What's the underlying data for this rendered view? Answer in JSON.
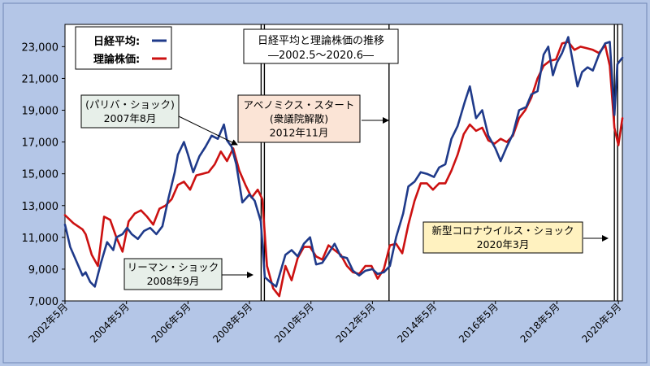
{
  "chart_data": {
    "type": "line",
    "title": "日経平均と理論株価の推移",
    "subtitle": "―2002.5～2020.6―",
    "xlabel": "",
    "ylabel": "",
    "ylim": [
      7000,
      24400
    ],
    "xlim": [
      2002.33,
      2020.46
    ],
    "y_ticks": [
      "7,000",
      "9,000",
      "11,000",
      "13,000",
      "15,000",
      "17,000",
      "19,000",
      "21,000",
      "23,000"
    ],
    "y_tick_values": [
      7000,
      9000,
      11000,
      13000,
      15000,
      17000,
      19000,
      21000,
      23000
    ],
    "x_ticks": [
      "2002年5月",
      "2004年5月",
      "2006年5月",
      "2008年5月",
      "2010年5月",
      "2012年5月",
      "2014年5月",
      "2016年5月",
      "2018年5月",
      "2020年5月"
    ],
    "x_tick_values": [
      2002.33,
      2004.33,
      2006.33,
      2008.33,
      2010.33,
      2012.33,
      2014.33,
      2016.33,
      2018.33,
      2020.33
    ],
    "legend": [
      "日経平均:",
      "理論株価:"
    ],
    "legend_position": "top-left",
    "grid": false,
    "colors": {
      "nikkei": "#1f3a8a",
      "theory": "#cc1111",
      "frame_bg": "#b4c6e7",
      "plot_bg": "#ffffff"
    },
    "event_lines": [
      {
        "x": 2008.71,
        "double": true
      },
      {
        "x": 2012.87,
        "double": false
      },
      {
        "x": 2020.2,
        "double": true
      }
    ],
    "annotations": [
      {
        "lines": [
          "(パリバ・ショック)",
          "2007年8月"
        ],
        "bg": "#e7efe9"
      },
      {
        "lines": [
          "リーマン・ショック",
          "2008年9月"
        ],
        "bg": "#e7efe9"
      },
      {
        "lines": [
          "アベノミクス・スタート",
          "(衆議院解散)",
          "2012年11月"
        ],
        "bg": "#fbe4d6"
      },
      {
        "lines": [
          "新型コロナウイルス・ショック",
          "2020年3月"
        ],
        "bg": "#fff2c0"
      }
    ],
    "series": [
      {
        "name": "日経平均:",
        "x": [
          2002.33,
          2002.5,
          2002.7,
          2002.9,
          2003.0,
          2003.15,
          2003.3,
          2003.5,
          2003.7,
          2003.9,
          2004.0,
          2004.2,
          2004.35,
          2004.5,
          2004.7,
          2004.9,
          2005.1,
          2005.3,
          2005.5,
          2005.7,
          2005.9,
          2006.0,
          2006.2,
          2006.33,
          2006.5,
          2006.7,
          2006.9,
          2007.1,
          2007.3,
          2007.5,
          2007.6,
          2007.75,
          2007.9,
          2008.1,
          2008.33,
          2008.5,
          2008.7,
          2008.83,
          2009.0,
          2009.2,
          2009.5,
          2009.7,
          2009.9,
          2010.1,
          2010.3,
          2010.5,
          2010.7,
          2010.9,
          2011.1,
          2011.3,
          2011.5,
          2011.7,
          2011.9,
          2012.1,
          2012.33,
          2012.5,
          2012.7,
          2012.9,
          2013.1,
          2013.33,
          2013.5,
          2013.7,
          2013.9,
          2014.1,
          2014.33,
          2014.5,
          2014.7,
          2014.9,
          2015.1,
          2015.33,
          2015.5,
          2015.7,
          2015.9,
          2016.1,
          2016.33,
          2016.5,
          2016.7,
          2016.9,
          2017.1,
          2017.33,
          2017.5,
          2017.7,
          2017.9,
          2018.05,
          2018.2,
          2018.33,
          2018.5,
          2018.7,
          2018.9,
          2019.0,
          2019.15,
          2019.33,
          2019.5,
          2019.7,
          2019.9,
          2020.05,
          2020.2,
          2020.3,
          2020.46
        ],
        "values": [
          11800,
          10400,
          9500,
          8600,
          8800,
          8200,
          7900,
          9400,
          10700,
          10200,
          11000,
          11200,
          11600,
          11200,
          10900,
          11400,
          11600,
          11200,
          11700,
          13500,
          15100,
          16200,
          17000,
          16200,
          15100,
          16100,
          16700,
          17400,
          17200,
          18100,
          17100,
          16700,
          15600,
          13200,
          13700,
          13300,
          12000,
          8500,
          8200,
          7900,
          9900,
          10200,
          9800,
          10600,
          11000,
          9300,
          9400,
          10000,
          10600,
          9800,
          9700,
          8900,
          8600,
          8900,
          9000,
          8700,
          8800,
          9200,
          11000,
          12500,
          14200,
          14500,
          15100,
          15000,
          14800,
          15400,
          15600,
          17200,
          18000,
          19500,
          20500,
          18500,
          19000,
          17400,
          16600,
          15800,
          16700,
          17500,
          19000,
          19200,
          20000,
          20200,
          22500,
          23000,
          21200,
          22000,
          22600,
          23600,
          21500,
          20500,
          21400,
          21700,
          21500,
          22500,
          23200,
          23300,
          18700,
          21900,
          22300
        ]
      },
      {
        "name": "理論株価:",
        "x": [
          2002.33,
          2002.6,
          2002.9,
          2003.0,
          2003.2,
          2003.4,
          2003.6,
          2003.8,
          2004.0,
          2004.2,
          2004.4,
          2004.6,
          2004.8,
          2005.0,
          2005.2,
          2005.4,
          2005.6,
          2005.8,
          2006.0,
          2006.2,
          2006.4,
          2006.6,
          2006.8,
          2007.0,
          2007.2,
          2007.4,
          2007.6,
          2007.8,
          2008.0,
          2008.2,
          2008.4,
          2008.6,
          2008.75,
          2008.9,
          2009.1,
          2009.3,
          2009.5,
          2009.7,
          2009.9,
          2010.1,
          2010.3,
          2010.5,
          2010.7,
          2010.9,
          2011.1,
          2011.3,
          2011.5,
          2011.7,
          2011.9,
          2012.1,
          2012.3,
          2012.5,
          2012.7,
          2012.9,
          2013.1,
          2013.3,
          2013.5,
          2013.7,
          2013.9,
          2014.1,
          2014.3,
          2014.5,
          2014.7,
          2014.9,
          2015.1,
          2015.3,
          2015.5,
          2015.7,
          2015.9,
          2016.1,
          2016.3,
          2016.5,
          2016.7,
          2016.9,
          2017.1,
          2017.3,
          2017.5,
          2017.7,
          2017.9,
          2018.1,
          2018.3,
          2018.5,
          2018.7,
          2018.9,
          2019.1,
          2019.3,
          2019.5,
          2019.7,
          2019.9,
          2020.05,
          2020.2,
          2020.33,
          2020.46
        ],
        "values": [
          12400,
          11900,
          11500,
          11200,
          9900,
          9200,
          12300,
          12100,
          11000,
          10100,
          12000,
          12500,
          12700,
          12300,
          11800,
          12800,
          13000,
          13400,
          14300,
          14500,
          14000,
          14900,
          15000,
          15100,
          15600,
          16400,
          15800,
          16600,
          15200,
          14300,
          13500,
          14000,
          13400,
          9200,
          7800,
          7300,
          9200,
          8300,
          9700,
          10400,
          10400,
          9800,
          9600,
          10500,
          10200,
          9900,
          9200,
          8800,
          8700,
          9200,
          9200,
          8400,
          9000,
          10500,
          10600,
          10000,
          11800,
          13300,
          14400,
          14400,
          14000,
          14400,
          14400,
          15200,
          16200,
          17500,
          18100,
          17700,
          17900,
          17100,
          16900,
          17200,
          17000,
          17400,
          18500,
          19000,
          19800,
          21000,
          21800,
          22100,
          22200,
          23200,
          23300,
          22800,
          23000,
          22900,
          22800,
          22600,
          23100,
          21800,
          17900,
          16800,
          18500
        ]
      }
    ]
  }
}
